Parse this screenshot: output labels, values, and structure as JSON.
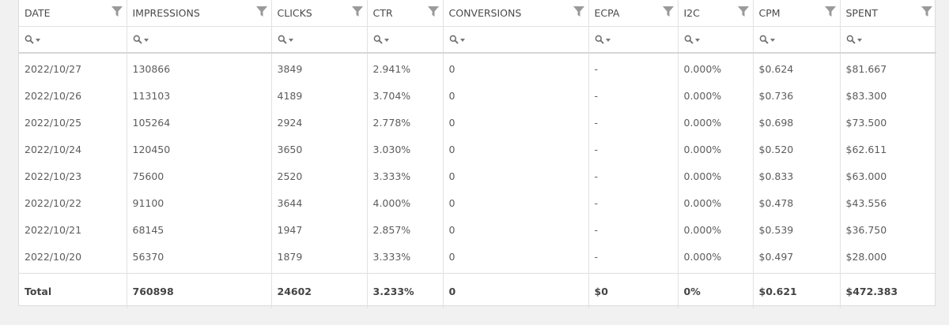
{
  "columns": [
    {
      "key": "date",
      "label": "DATE"
    },
    {
      "key": "impressions",
      "label": "IMPRESSIONS"
    },
    {
      "key": "clicks",
      "label": "CLICKS"
    },
    {
      "key": "ctr",
      "label": "CTR"
    },
    {
      "key": "conversions",
      "label": "CONVERSIONS"
    },
    {
      "key": "ecpa",
      "label": "ECPA"
    },
    {
      "key": "i2c",
      "label": "I2C"
    },
    {
      "key": "cpm",
      "label": "CPM"
    },
    {
      "key": "spent",
      "label": "SPENT"
    }
  ],
  "rows": [
    [
      "2022/10/27",
      "130866",
      "3849",
      "2.941%",
      "0",
      "-",
      "0.000%",
      "$0.624",
      "$81.667"
    ],
    [
      "2022/10/26",
      "113103",
      "4189",
      "3.704%",
      "0",
      "-",
      "0.000%",
      "$0.736",
      "$83.300"
    ],
    [
      "2022/10/25",
      "105264",
      "2924",
      "2.778%",
      "0",
      "-",
      "0.000%",
      "$0.698",
      "$73.500"
    ],
    [
      "2022/10/24",
      "120450",
      "3650",
      "3.030%",
      "0",
      "-",
      "0.000%",
      "$0.520",
      "$62.611"
    ],
    [
      "2022/10/23",
      "75600",
      "2520",
      "3.333%",
      "0",
      "-",
      "0.000%",
      "$0.833",
      "$63.000"
    ],
    [
      "2022/10/22",
      "91100",
      "3644",
      "4.000%",
      "0",
      "-",
      "0.000%",
      "$0.478",
      "$43.556"
    ],
    [
      "2022/10/21",
      "68145",
      "1947",
      "2.857%",
      "0",
      "-",
      "0.000%",
      "$0.539",
      "$36.750"
    ],
    [
      "2022/10/20",
      "56370",
      "1879",
      "3.333%",
      "0",
      "-",
      "0.000%",
      "$0.497",
      "$28.000"
    ]
  ],
  "totals": [
    "Total",
    "760898",
    "24602",
    "3.233%",
    "0",
    "$0",
    "0%",
    "$0.621",
    "$472.383"
  ],
  "icons": {
    "filter": "filter-icon",
    "search": "search-icon",
    "dropdown": "caret-down-icon"
  },
  "colors": {
    "icon": "#9a9a9a",
    "border": "#e2e2e2",
    "background": "#f1f1f2"
  }
}
